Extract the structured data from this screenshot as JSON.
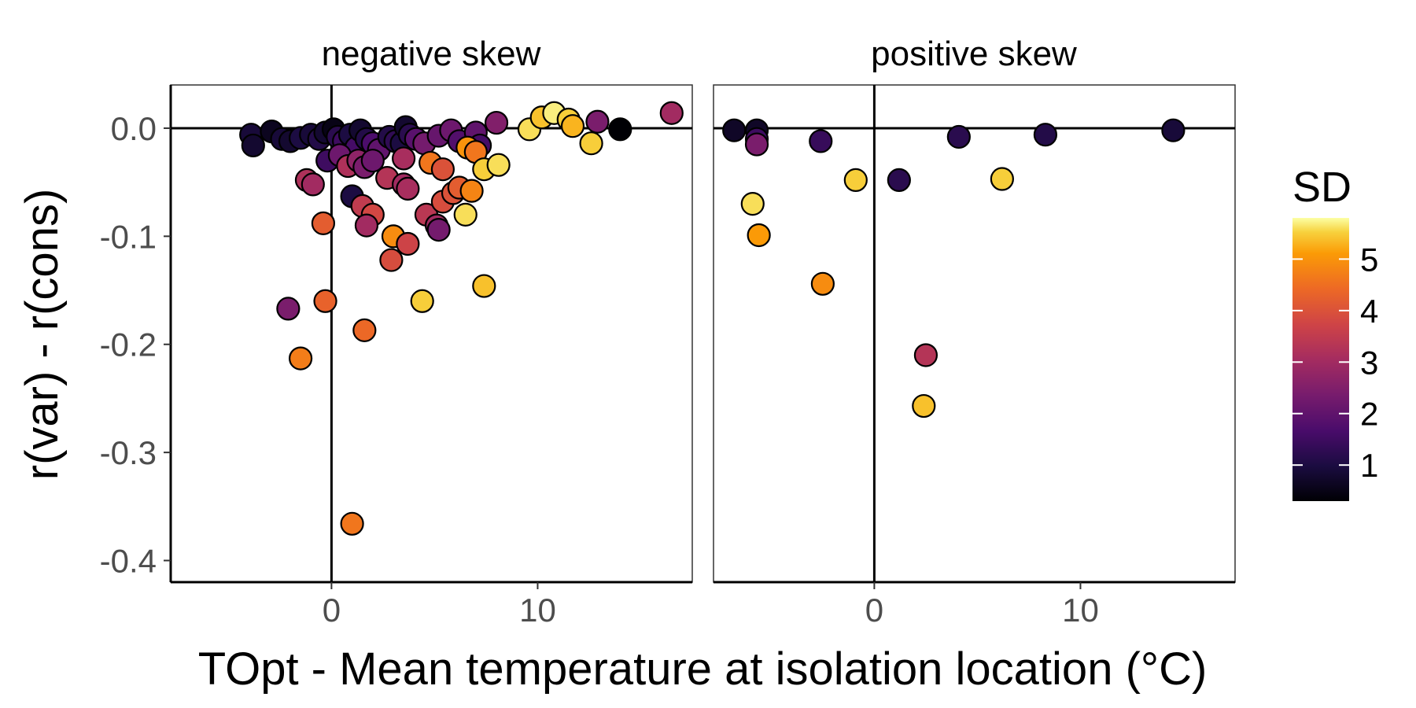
{
  "chart_data": {
    "type": "scatter",
    "xlabel": "TOpt - Mean temperature at isolation location (°C)",
    "ylabel": "r(var) - r(cons)",
    "xlim": [
      -7.8,
      17.5
    ],
    "ylim": [
      -0.42,
      0.04
    ],
    "x_ticks": [
      0,
      10
    ],
    "x_tick_labels": [
      "0",
      "10"
    ],
    "y_ticks": [
      0.0,
      -0.1,
      -0.2,
      -0.3,
      -0.4
    ],
    "y_tick_labels": [
      "0.0",
      "-0.1",
      "-0.2",
      "-0.3",
      "-0.4"
    ],
    "grid": false,
    "reference_lines": {
      "x": 0,
      "y": 0
    },
    "color_scale": {
      "title": "SD",
      "palette": "inferno",
      "range": [
        0.3,
        5.8
      ],
      "ticks": [
        1,
        2,
        3,
        4,
        5
      ],
      "tick_labels": [
        "1",
        "2",
        "3",
        "4",
        "5"
      ],
      "legend_position": "right"
    },
    "panels": [
      {
        "title": "negative skew",
        "points": [
          {
            "x": -3.9,
            "y": -0.006,
            "sd": 0.9
          },
          {
            "x": -3.8,
            "y": -0.016,
            "sd": 0.8
          },
          {
            "x": -2.9,
            "y": -0.003,
            "sd": 0.6
          },
          {
            "x": -2.4,
            "y": -0.01,
            "sd": 0.9
          },
          {
            "x": -2.0,
            "y": -0.012,
            "sd": 0.8
          },
          {
            "x": -1.5,
            "y": -0.009,
            "sd": 1.0
          },
          {
            "x": -1.0,
            "y": -0.006,
            "sd": 0.9
          },
          {
            "x": -0.6,
            "y": -0.01,
            "sd": 1.1
          },
          {
            "x": -0.3,
            "y": -0.004,
            "sd": 0.8
          },
          {
            "x": 0.1,
            "y": -0.001,
            "sd": 0.5
          },
          {
            "x": 0.3,
            "y": -0.008,
            "sd": 1.2
          },
          {
            "x": 0.6,
            "y": -0.012,
            "sd": 1.5
          },
          {
            "x": 0.9,
            "y": -0.006,
            "sd": 1.0
          },
          {
            "x": 1.2,
            "y": -0.018,
            "sd": 1.6
          },
          {
            "x": 1.4,
            "y": -0.002,
            "sd": 0.8
          },
          {
            "x": 1.7,
            "y": -0.01,
            "sd": 1.1
          },
          {
            "x": 2.0,
            "y": -0.014,
            "sd": 1.7
          },
          {
            "x": 2.3,
            "y": -0.02,
            "sd": 2.0
          },
          {
            "x": 2.8,
            "y": -0.008,
            "sd": 1.1
          },
          {
            "x": 3.1,
            "y": -0.012,
            "sd": 1.3
          },
          {
            "x": 3.4,
            "y": -0.014,
            "sd": 1.0
          },
          {
            "x": 3.6,
            "y": 0.001,
            "sd": 0.8
          },
          {
            "x": 3.8,
            "y": -0.006,
            "sd": 1.2
          },
          {
            "x": 4.1,
            "y": -0.01,
            "sd": 1.9
          },
          {
            "x": 4.5,
            "y": -0.014,
            "sd": 2.3
          },
          {
            "x": 5.2,
            "y": -0.007,
            "sd": 2.1
          },
          {
            "x": 5.8,
            "y": -0.002,
            "sd": 2.2
          },
          {
            "x": 6.2,
            "y": -0.012,
            "sd": 1.8
          },
          {
            "x": 7.0,
            "y": -0.004,
            "sd": 2.0
          },
          {
            "x": 7.2,
            "y": -0.016,
            "sd": 1.6
          },
          {
            "x": 8.0,
            "y": 0.005,
            "sd": 2.5
          },
          {
            "x": 9.6,
            "y": -0.001,
            "sd": 5.6
          },
          {
            "x": 10.2,
            "y": 0.01,
            "sd": 5.4
          },
          {
            "x": 10.8,
            "y": 0.014,
            "sd": 5.7
          },
          {
            "x": 11.5,
            "y": 0.008,
            "sd": 5.5
          },
          {
            "x": 11.7,
            "y": 0.002,
            "sd": 5.3
          },
          {
            "x": 12.9,
            "y": 0.006,
            "sd": 2.4
          },
          {
            "x": 14.0,
            "y": -0.001,
            "sd": 0.3
          },
          {
            "x": 16.5,
            "y": 0.014,
            "sd": 3.0
          },
          {
            "x": 12.6,
            "y": -0.014,
            "sd": 5.5
          },
          {
            "x": -0.2,
            "y": -0.03,
            "sd": 1.5
          },
          {
            "x": 0.4,
            "y": -0.025,
            "sd": 2.2
          },
          {
            "x": 0.8,
            "y": -0.035,
            "sd": 3.2
          },
          {
            "x": 1.3,
            "y": -0.03,
            "sd": 2.7
          },
          {
            "x": 1.6,
            "y": -0.036,
            "sd": 2.4
          },
          {
            "x": 2.0,
            "y": -0.03,
            "sd": 2.2
          },
          {
            "x": 3.5,
            "y": -0.028,
            "sd": 3.1
          },
          {
            "x": 4.8,
            "y": -0.032,
            "sd": 4.6
          },
          {
            "x": 5.4,
            "y": -0.038,
            "sd": 4.0
          },
          {
            "x": 6.6,
            "y": -0.018,
            "sd": 5.0
          },
          {
            "x": 7.0,
            "y": -0.022,
            "sd": 4.6
          },
          {
            "x": 7.4,
            "y": -0.038,
            "sd": 5.5
          },
          {
            "x": 8.1,
            "y": -0.034,
            "sd": 5.6
          },
          {
            "x": -1.2,
            "y": -0.048,
            "sd": 3.2
          },
          {
            "x": -0.9,
            "y": -0.052,
            "sd": 3.0
          },
          {
            "x": 1.0,
            "y": -0.063,
            "sd": 1.0
          },
          {
            "x": 1.5,
            "y": -0.072,
            "sd": 3.5
          },
          {
            "x": 2.0,
            "y": -0.08,
            "sd": 3.8
          },
          {
            "x": 2.7,
            "y": -0.046,
            "sd": 3.3
          },
          {
            "x": 3.5,
            "y": -0.052,
            "sd": 3.0
          },
          {
            "x": 3.7,
            "y": -0.056,
            "sd": 3.1
          },
          {
            "x": 4.6,
            "y": -0.08,
            "sd": 3.4
          },
          {
            "x": 5.1,
            "y": -0.09,
            "sd": 3.0
          },
          {
            "x": 5.4,
            "y": -0.068,
            "sd": 3.9
          },
          {
            "x": 5.9,
            "y": -0.06,
            "sd": 4.0
          },
          {
            "x": 6.2,
            "y": -0.055,
            "sd": 4.2
          },
          {
            "x": 6.8,
            "y": -0.058,
            "sd": 4.8
          },
          {
            "x": 5.2,
            "y": -0.094,
            "sd": 2.3
          },
          {
            "x": 6.5,
            "y": -0.08,
            "sd": 5.6
          },
          {
            "x": -0.4,
            "y": -0.088,
            "sd": 4.2
          },
          {
            "x": 1.7,
            "y": -0.09,
            "sd": 3.0
          },
          {
            "x": 3.0,
            "y": -0.1,
            "sd": 4.9
          },
          {
            "x": 3.7,
            "y": -0.107,
            "sd": 3.7
          },
          {
            "x": 2.9,
            "y": -0.122,
            "sd": 3.9
          },
          {
            "x": 4.4,
            "y": -0.16,
            "sd": 5.5
          },
          {
            "x": 7.4,
            "y": -0.146,
            "sd": 5.4
          },
          {
            "x": -2.1,
            "y": -0.167,
            "sd": 2.4
          },
          {
            "x": -0.3,
            "y": -0.16,
            "sd": 4.3
          },
          {
            "x": 1.6,
            "y": -0.187,
            "sd": 4.4
          },
          {
            "x": -1.5,
            "y": -0.213,
            "sd": 4.7
          },
          {
            "x": 1.0,
            "y": -0.366,
            "sd": 4.6
          }
        ]
      },
      {
        "title": "positive skew",
        "points": [
          {
            "x": -6.8,
            "y": -0.002,
            "sd": 0.7
          },
          {
            "x": -5.7,
            "y": -0.002,
            "sd": 0.7
          },
          {
            "x": -5.7,
            "y": -0.01,
            "sd": 1.5
          },
          {
            "x": -5.7,
            "y": -0.015,
            "sd": 2.4
          },
          {
            "x": -2.6,
            "y": -0.012,
            "sd": 1.4
          },
          {
            "x": 4.1,
            "y": -0.008,
            "sd": 1.2
          },
          {
            "x": 8.3,
            "y": -0.006,
            "sd": 1.1
          },
          {
            "x": 14.5,
            "y": -0.002,
            "sd": 0.9
          },
          {
            "x": -0.9,
            "y": -0.048,
            "sd": 5.5
          },
          {
            "x": 1.2,
            "y": -0.048,
            "sd": 1.2
          },
          {
            "x": 6.2,
            "y": -0.047,
            "sd": 5.5
          },
          {
            "x": -5.9,
            "y": -0.07,
            "sd": 5.6
          },
          {
            "x": -5.6,
            "y": -0.099,
            "sd": 5.1
          },
          {
            "x": -2.5,
            "y": -0.144,
            "sd": 4.9
          },
          {
            "x": 2.5,
            "y": -0.21,
            "sd": 3.3
          },
          {
            "x": 2.4,
            "y": -0.257,
            "sd": 5.4
          }
        ]
      }
    ]
  }
}
